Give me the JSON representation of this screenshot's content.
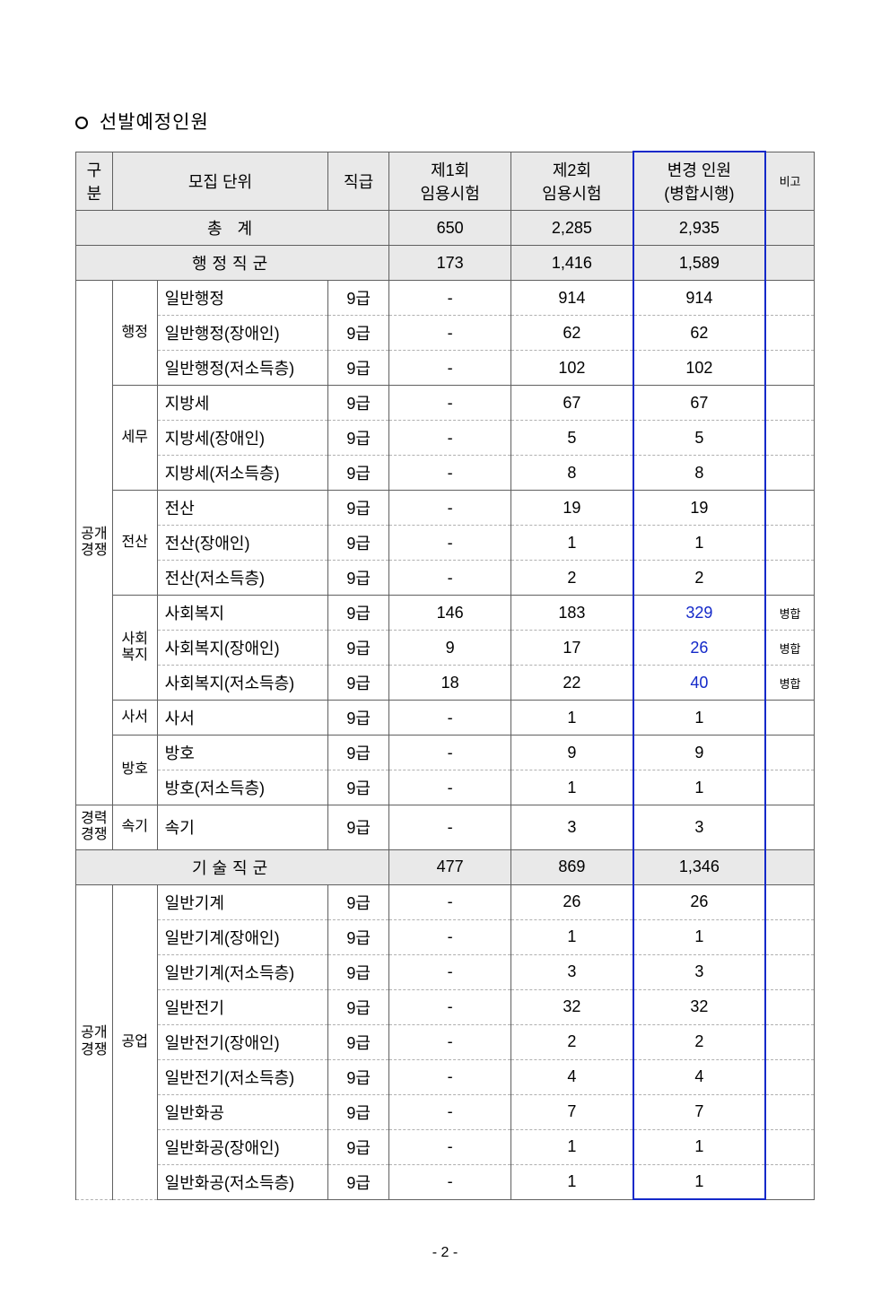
{
  "heading": "선발예정인원",
  "columns": {
    "gubun": "구\n분",
    "recruit_unit": "모집 단위",
    "grade": "직급",
    "round1": "제1회\n임용시험",
    "round2": "제2회\n임용시험",
    "changed": "변경 인원\n(병합시행)",
    "note": "비고"
  },
  "total_label": "총     계",
  "totals": {
    "r1": "650",
    "r2": "2,285",
    "chg": "2,935"
  },
  "admin_group": {
    "label": "행정직군",
    "r1": "173",
    "r2": "1,416",
    "chg": "1,589"
  },
  "tech_group": {
    "label": "기술직군",
    "r1": "477",
    "r2": "869",
    "chg": "1,346"
  },
  "labels": {
    "open": "공개\n경쟁",
    "career": "경력\n경쟁",
    "admin": "행정",
    "tax": "세무",
    "cs": "전산",
    "welfare": "사회\n복지",
    "librarian": "사서",
    "guard": "방호",
    "steno": "속기",
    "industry": "공업"
  },
  "rows": {
    "admin": [
      {
        "name": "일반행정",
        "grade": "9급",
        "r1": "-",
        "r2": "914",
        "chg": "914",
        "note": ""
      },
      {
        "name": "일반행정(장애인)",
        "grade": "9급",
        "r1": "-",
        "r2": "62",
        "chg": "62",
        "note": ""
      },
      {
        "name": "일반행정(저소득층)",
        "grade": "9급",
        "r1": "-",
        "r2": "102",
        "chg": "102",
        "note": ""
      }
    ],
    "tax": [
      {
        "name": "지방세",
        "grade": "9급",
        "r1": "-",
        "r2": "67",
        "chg": "67",
        "note": ""
      },
      {
        "name": "지방세(장애인)",
        "grade": "9급",
        "r1": "-",
        "r2": "5",
        "chg": "5",
        "note": ""
      },
      {
        "name": "지방세(저소득층)",
        "grade": "9급",
        "r1": "-",
        "r2": "8",
        "chg": "8",
        "note": ""
      }
    ],
    "cs": [
      {
        "name": "전산",
        "grade": "9급",
        "r1": "-",
        "r2": "19",
        "chg": "19",
        "note": ""
      },
      {
        "name": "전산(장애인)",
        "grade": "9급",
        "r1": "-",
        "r2": "1",
        "chg": "1",
        "note": ""
      },
      {
        "name": "전산(저소득층)",
        "grade": "9급",
        "r1": "-",
        "r2": "2",
        "chg": "2",
        "note": ""
      }
    ],
    "welfare": [
      {
        "name": "사회복지",
        "grade": "9급",
        "r1": "146",
        "r2": "183",
        "chg": "329",
        "note": "병합",
        "blue": true
      },
      {
        "name": "사회복지(장애인)",
        "grade": "9급",
        "r1": "9",
        "r2": "17",
        "chg": "26",
        "note": "병합",
        "blue": true
      },
      {
        "name": "사회복지(저소득층)",
        "grade": "9급",
        "r1": "18",
        "r2": "22",
        "chg": "40",
        "note": "병합",
        "blue": true
      }
    ],
    "librarian": [
      {
        "name": "사서",
        "grade": "9급",
        "r1": "-",
        "r2": "1",
        "chg": "1",
        "note": ""
      }
    ],
    "guard": [
      {
        "name": "방호",
        "grade": "9급",
        "r1": "-",
        "r2": "9",
        "chg": "9",
        "note": ""
      },
      {
        "name": "방호(저소득층)",
        "grade": "9급",
        "r1": "-",
        "r2": "1",
        "chg": "1",
        "note": ""
      }
    ],
    "steno": [
      {
        "name": "속기",
        "grade": "9급",
        "r1": "-",
        "r2": "3",
        "chg": "3",
        "note": ""
      }
    ],
    "industry": [
      {
        "name": "일반기계",
        "grade": "9급",
        "r1": "-",
        "r2": "26",
        "chg": "26",
        "note": ""
      },
      {
        "name": "일반기계(장애인)",
        "grade": "9급",
        "r1": "-",
        "r2": "1",
        "chg": "1",
        "note": ""
      },
      {
        "name": "일반기계(저소득층)",
        "grade": "9급",
        "r1": "-",
        "r2": "3",
        "chg": "3",
        "note": ""
      },
      {
        "name": "일반전기",
        "grade": "9급",
        "r1": "-",
        "r2": "32",
        "chg": "32",
        "note": ""
      },
      {
        "name": "일반전기(장애인)",
        "grade": "9급",
        "r1": "-",
        "r2": "2",
        "chg": "2",
        "note": ""
      },
      {
        "name": "일반전기(저소득층)",
        "grade": "9급",
        "r1": "-",
        "r2": "4",
        "chg": "4",
        "note": ""
      },
      {
        "name": "일반화공",
        "grade": "9급",
        "r1": "-",
        "r2": "7",
        "chg": "7",
        "note": ""
      },
      {
        "name": "일반화공(장애인)",
        "grade": "9급",
        "r1": "-",
        "r2": "1",
        "chg": "1",
        "note": ""
      },
      {
        "name": "일반화공(저소득층)",
        "grade": "9급",
        "r1": "-",
        "r2": "1",
        "chg": "1",
        "note": ""
      }
    ]
  },
  "page_number": "- 2 -"
}
